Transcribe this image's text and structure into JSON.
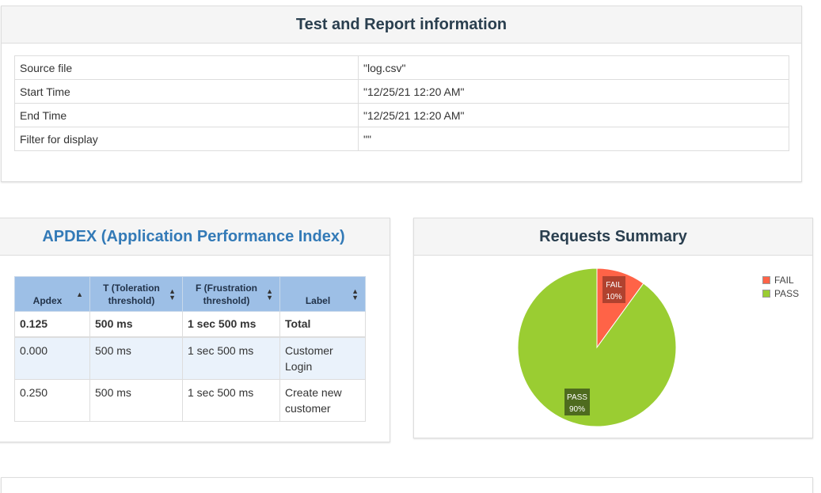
{
  "info": {
    "title": "Test and Report information",
    "rows": [
      {
        "label": "Source file",
        "value": "\"log.csv\""
      },
      {
        "label": "Start Time",
        "value": "\"12/25/21 12:20 AM\""
      },
      {
        "label": "End Time",
        "value": "\"12/25/21 12:20 AM\""
      },
      {
        "label": "Filter for display",
        "value": "\"\""
      }
    ]
  },
  "apdex": {
    "title": "APDEX (Application Performance Index)",
    "headers": {
      "apdex": "Apdex",
      "t_line1": "T (Toleration",
      "t_line2": "threshold)",
      "f_line1": "F (Frustration",
      "f_line2": "threshold)",
      "label": "Label"
    },
    "total": {
      "apdex": "0.125",
      "t": "500 ms",
      "f": "1 sec 500 ms",
      "label": "Total"
    },
    "rows": [
      {
        "apdex": "0.000",
        "t": "500 ms",
        "f": "1 sec 500 ms",
        "label_line1": "Customer",
        "label_line2": "Login"
      },
      {
        "apdex": "0.250",
        "t": "500 ms",
        "f": "1 sec 500 ms",
        "label_line1": "Create new",
        "label_line2": "customer"
      }
    ]
  },
  "summary": {
    "title": "Requests Summary",
    "fail_text": "FAIL",
    "fail_pct_text": "10%",
    "pass_text": "PASS",
    "pass_pct_text": "90%",
    "legend": {
      "fail": "FAIL",
      "pass": "PASS"
    }
  },
  "chart_data": {
    "type": "pie",
    "slices": [
      {
        "label": "FAIL",
        "value": 10,
        "color": "#ff6347"
      },
      {
        "label": "PASS",
        "value": 90,
        "color": "#9acd32"
      }
    ],
    "title": "Requests Summary",
    "legend_position": "top-right"
  }
}
